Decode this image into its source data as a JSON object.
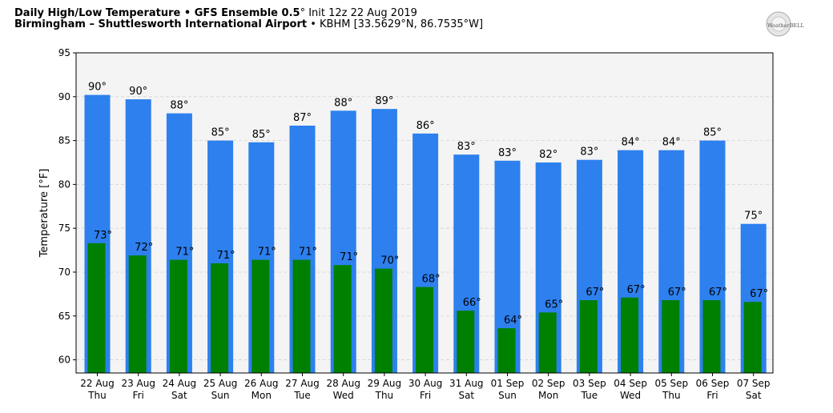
{
  "header": {
    "title_bold": "Daily High/Low Temperature • GFS Ensemble 0.5",
    "title_deg": "°",
    "title_rest": " Init 12z 22 Aug 2019",
    "location_bold": "Birmingham – Shuttlesworth International Airport",
    "location_rest": " • KBHM [33.5629°N, 86.7535°W]"
  },
  "logo": {
    "text": "WeatherBELL",
    "icon": "weatherbell-logo-icon"
  },
  "colors": {
    "high": "#2d80ee",
    "low": "#008000",
    "plot_bg": "#f4f4f4"
  },
  "chart_data": {
    "type": "bar",
    "title": "Daily High/Low Temperature • GFS Ensemble 0.5° Init 12z 22 Aug 2019",
    "ylabel": "Temperature [°F]",
    "xlabel": "",
    "ylim": [
      58.5,
      95
    ],
    "yticks": [
      60,
      65,
      70,
      75,
      80,
      85,
      90,
      95
    ],
    "grid": true,
    "categories": [
      "22 Aug",
      "23 Aug",
      "24 Aug",
      "25 Aug",
      "26 Aug",
      "27 Aug",
      "28 Aug",
      "29 Aug",
      "30 Aug",
      "31 Aug",
      "01 Sep",
      "02 Sep",
      "03 Sep",
      "04 Sep",
      "05 Sep",
      "06 Sep",
      "07 Sep"
    ],
    "days": [
      "Thu",
      "Fri",
      "Sat",
      "Sun",
      "Mon",
      "Tue",
      "Wed",
      "Thu",
      "Fri",
      "Sat",
      "Sun",
      "Mon",
      "Tue",
      "Wed",
      "Thu",
      "Fri",
      "Sat"
    ],
    "series": [
      {
        "name": "High",
        "values": [
          90.2,
          89.7,
          88.1,
          85.0,
          84.8,
          86.7,
          88.4,
          88.6,
          85.8,
          83.4,
          82.7,
          82.5,
          82.8,
          83.9,
          83.9,
          85.0,
          75.5
        ],
        "labels": [
          "90°",
          "90°",
          "88°",
          "85°",
          "85°",
          "87°",
          "88°",
          "89°",
          "86°",
          "83°",
          "83°",
          "82°",
          "83°",
          "84°",
          "84°",
          "85°",
          "75°"
        ]
      },
      {
        "name": "Low",
        "values": [
          73.3,
          71.9,
          71.4,
          71.0,
          71.4,
          71.4,
          70.8,
          70.4,
          68.3,
          65.6,
          63.6,
          65.4,
          66.8,
          67.1,
          66.8,
          66.8,
          66.6
        ],
        "labels": [
          "73°",
          "72°",
          "71°",
          "71°",
          "71°",
          "71°",
          "71°",
          "70°",
          "68°",
          "66°",
          "64°",
          "65°",
          "67°",
          "67°",
          "67°",
          "67°",
          "67°"
        ]
      }
    ]
  }
}
